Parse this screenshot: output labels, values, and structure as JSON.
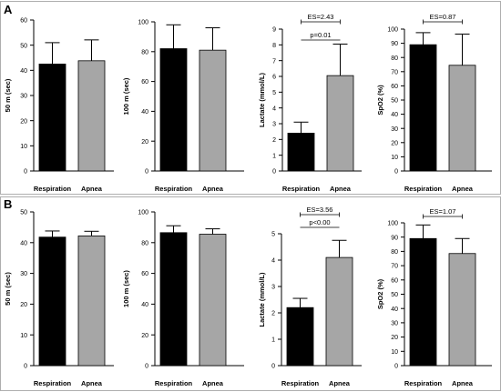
{
  "panel_labels": [
    "A",
    "B"
  ],
  "chart_data": [
    {
      "type": "bar",
      "categories": [
        "Respiration",
        "Apnea"
      ],
      "values": [
        42.5,
        43.8
      ],
      "errors": [
        8.5,
        8.3
      ],
      "ylabel": "50 m (sec)",
      "ylim": [
        0,
        60
      ],
      "yticks": [
        0,
        10,
        20,
        30,
        40,
        50,
        60
      ],
      "colors": [
        "#000000",
        "#a6a6a6"
      ],
      "annotations": []
    },
    {
      "type": "bar",
      "categories": [
        "Respiration",
        "Apnea"
      ],
      "values": [
        82,
        81
      ],
      "errors": [
        16,
        15
      ],
      "ylabel": "100 m (sec)",
      "ylim": [
        0,
        100
      ],
      "yticks": [
        0,
        20,
        40,
        60,
        80,
        100
      ],
      "colors": [
        "#000000",
        "#a6a6a6"
      ],
      "annotations": []
    },
    {
      "type": "bar",
      "categories": [
        "Respiration",
        "Apnea"
      ],
      "values": [
        2.4,
        6.05
      ],
      "errors": [
        0.7,
        2.0
      ],
      "ylabel": "Lactate (mmol/L)",
      "ylim": [
        0,
        9
      ],
      "yticks": [
        0,
        1,
        2,
        3,
        4,
        5,
        6,
        7,
        8,
        9
      ],
      "colors": [
        "#000000",
        "#a6a6a6"
      ],
      "annotations": [
        "p=0.01",
        "ES=2.43"
      ]
    },
    {
      "type": "bar",
      "categories": [
        "Respiration",
        "Apnea"
      ],
      "values": [
        89,
        74.5
      ],
      "errors": [
        8.5,
        22
      ],
      "ylabel": "SpO2 (%)",
      "ylim": [
        0,
        100
      ],
      "yticks": [
        0,
        10,
        20,
        30,
        40,
        50,
        60,
        70,
        80,
        90,
        100
      ],
      "colors": [
        "#000000",
        "#a6a6a6"
      ],
      "annotations": [
        "ES=0.87"
      ]
    },
    {
      "type": "bar",
      "categories": [
        "Respiration",
        "Apnea"
      ],
      "values": [
        41.8,
        42.2
      ],
      "errors": [
        2.0,
        1.5
      ],
      "ylabel": "50 m (sec)",
      "ylim": [
        0,
        50
      ],
      "yticks": [
        0,
        10,
        20,
        30,
        40,
        50
      ],
      "colors": [
        "#000000",
        "#a6a6a6"
      ],
      "annotations": []
    },
    {
      "type": "bar",
      "categories": [
        "Respiration",
        "Apnea"
      ],
      "values": [
        86.5,
        85.5
      ],
      "errors": [
        4.5,
        3.5
      ],
      "ylabel": "100 m (sec)",
      "ylim": [
        0,
        100
      ],
      "yticks": [
        0,
        20,
        40,
        60,
        80,
        100
      ],
      "colors": [
        "#000000",
        "#a6a6a6"
      ],
      "annotations": []
    },
    {
      "type": "bar",
      "categories": [
        "Respiration",
        "Apnea"
      ],
      "values": [
        2.2,
        4.1
      ],
      "errors": [
        0.35,
        0.65
      ],
      "ylabel": "Lactate (mmol/L)",
      "ylim": [
        0,
        5
      ],
      "yticks": [
        0,
        1,
        2,
        3,
        4,
        5
      ],
      "colors": [
        "#000000",
        "#a6a6a6"
      ],
      "annotations": [
        "p<0.00",
        "ES=3.56"
      ]
    },
    {
      "type": "bar",
      "categories": [
        "Respiration",
        "Apnea"
      ],
      "values": [
        89,
        78.5
      ],
      "errors": [
        9.5,
        10.5
      ],
      "ylabel": "SpO2 (%)",
      "ylim": [
        0,
        100
      ],
      "yticks": [
        0,
        10,
        20,
        30,
        40,
        50,
        60,
        70,
        80,
        90,
        100
      ],
      "colors": [
        "#000000",
        "#a6a6a6"
      ],
      "annotations": [
        "ES=1.07"
      ]
    }
  ]
}
